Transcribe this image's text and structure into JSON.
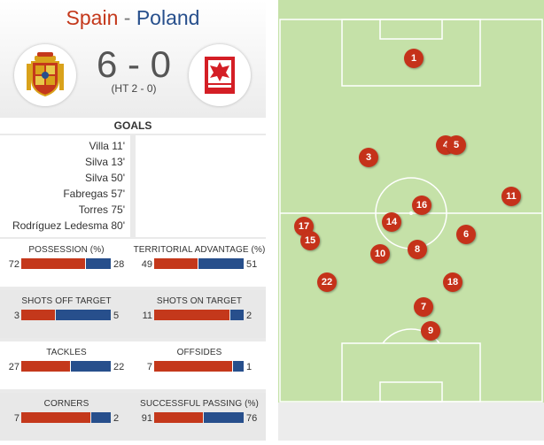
{
  "match": {
    "home_team": "Spain",
    "separator": "-",
    "away_team": "Poland",
    "score": "6 - 0",
    "halftime": "(HT 2 - 0)",
    "home_crest_icon": "spain-crest-icon",
    "away_crest_icon": "poland-crest-icon"
  },
  "goals": {
    "header": "GOALS",
    "home": [
      "Villa 11'",
      "Silva 13'",
      "Silva 50'",
      "Fabregas 57'",
      "Torres 75'",
      "Rodríguez Ledesma 80'"
    ],
    "away": []
  },
  "stats": [
    {
      "label": "POSSESSION (%)",
      "home": 72,
      "away": 28,
      "home_share": 0.72
    },
    {
      "label": "TERRITORIAL ADVANTAGE (%)",
      "home": 49,
      "away": 51,
      "home_share": 0.49
    },
    {
      "label": "SHOTS OFF TARGET",
      "home": 3,
      "away": 5,
      "home_share": 0.375
    },
    {
      "label": "SHOTS ON TARGET",
      "home": 11,
      "away": 2,
      "home_share": 0.846
    },
    {
      "label": "TACKLES",
      "home": 27,
      "away": 22,
      "home_share": 0.551
    },
    {
      "label": "OFFSIDES",
      "home": 7,
      "away": 1,
      "home_share": 0.875
    },
    {
      "label": "CORNERS",
      "home": 7,
      "away": 2,
      "home_share": 0.778
    },
    {
      "label": "SUCCESSFUL PASSING (%)",
      "home": 91,
      "away": 76,
      "home_share": 0.545
    }
  ],
  "players": [
    "1",
    "4",
    "5",
    "3",
    "11",
    "16",
    "14",
    "17",
    "15",
    "6",
    "10",
    "8",
    "22",
    "18",
    "7",
    "9"
  ],
  "colors": {
    "home": "#c4381b",
    "away": "#274f8c",
    "pitch": "#c5e1a8",
    "player_dot": "#c5321a"
  }
}
